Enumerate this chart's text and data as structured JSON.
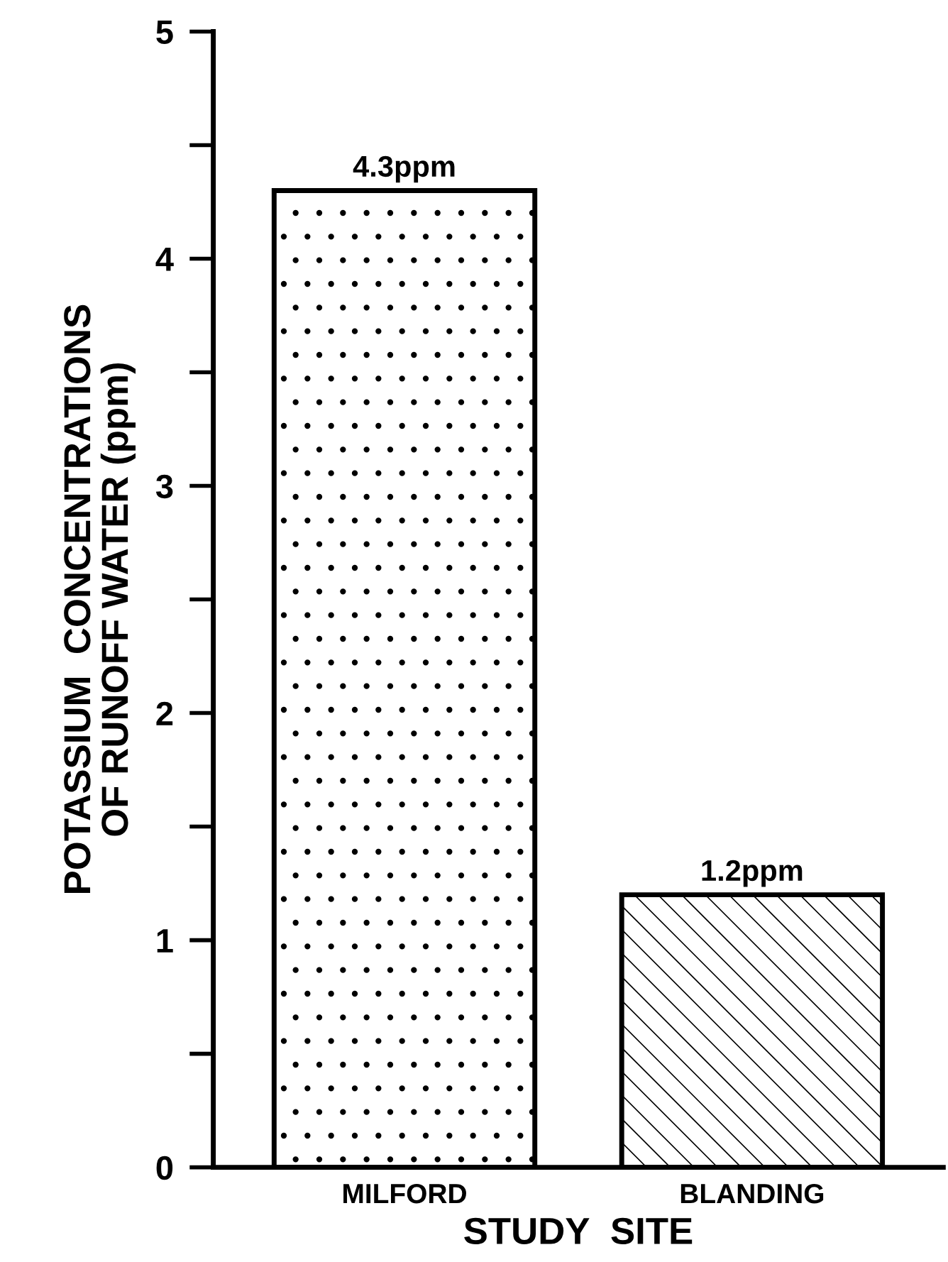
{
  "chart_data": {
    "type": "bar",
    "ylabel": "POTASSIUM  CONCENTRATIONS\nOF RUNOFF WATER (ppm)",
    "xlabel": "STUDY  SITE",
    "categories": [
      "MILFORD",
      "BLANDING"
    ],
    "values": [
      4.3,
      1.2
    ],
    "value_labels": [
      "4.3ppm",
      "1.2ppm"
    ],
    "color": "#000000",
    "ylim": [
      0,
      5
    ],
    "yticks": [
      0,
      1,
      2,
      3,
      4,
      5
    ],
    "grid": false
  }
}
